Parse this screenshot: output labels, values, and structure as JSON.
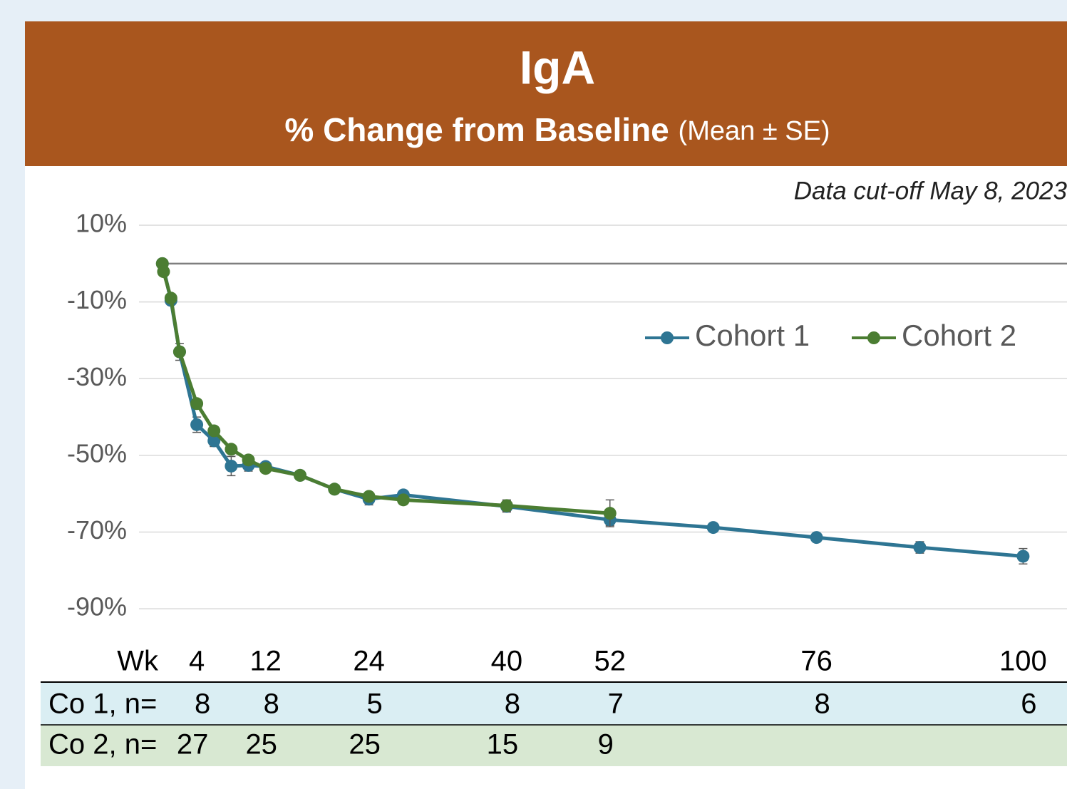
{
  "chart_data": {
    "type": "line",
    "title": "IgA",
    "subtitle": "% Change from Baseline",
    "subtitle_note": "(Mean ± SE)",
    "annotation": "Data cut-off May 8, 2023",
    "xlim": [
      -2.3,
      105.1
    ],
    "xticks": [
      4,
      12,
      24,
      40,
      52,
      76,
      100
    ],
    "x_axis_label": "Wk",
    "ylim": [
      -100,
      10
    ],
    "yticks": [
      {
        "value": 10,
        "label": "10%"
      },
      {
        "value": -10,
        "label": "-10%"
      },
      {
        "value": -30,
        "label": "-30%"
      },
      {
        "value": -50,
        "label": "-50%"
      },
      {
        "value": -70,
        "label": "-70%"
      },
      {
        "value": -90,
        "label": "-90%"
      }
    ],
    "grid": true,
    "reference_line": 0,
    "legend": "top-right",
    "series": [
      {
        "name": "Cohort 1",
        "color": "#2e7593",
        "x": [
          0,
          1,
          2,
          4,
          6,
          8,
          10,
          12,
          16,
          20,
          24,
          28,
          40,
          52,
          64,
          76,
          88,
          100
        ],
        "values": [
          0,
          -9.6,
          -23,
          -42,
          -46.2,
          -52.8,
          -52.6,
          -52.9,
          -55.2,
          -58.8,
          -61.4,
          -60.3,
          -63.3,
          -66.8,
          -68.8,
          -71.4,
          -74,
          -76.3
        ],
        "errors": [
          0,
          0.5,
          2.2,
          2,
          1.5,
          2.5,
          1.5,
          1,
          1,
          1,
          1.5,
          1,
          1.5,
          1.5,
          1,
          1,
          1.5,
          2
        ]
      },
      {
        "name": "Cohort 2",
        "color": "#4b7d32",
        "x": [
          0,
          0.14,
          1,
          2,
          4,
          6,
          8,
          10,
          12,
          16,
          20,
          24,
          28,
          40,
          52
        ],
        "values": [
          0,
          -2.1,
          -9,
          -23,
          -36.5,
          -43.6,
          -48.4,
          -51.2,
          -53.4,
          -55.2,
          -58.8,
          -60.7,
          -61.6,
          -63.1,
          -65.1
        ],
        "errors": [
          0,
          0.5,
          1,
          1,
          1,
          1,
          1,
          1,
          1,
          1,
          1,
          1,
          1,
          1.5,
          3.5
        ]
      }
    ],
    "n_table": {
      "rows": [
        {
          "label": "Co 1, n=",
          "values": [
            8,
            8,
            5,
            8,
            7,
            8,
            6
          ]
        },
        {
          "label": "Co 2, n=",
          "values": [
            27,
            25,
            25,
            15,
            9
          ]
        }
      ]
    }
  }
}
